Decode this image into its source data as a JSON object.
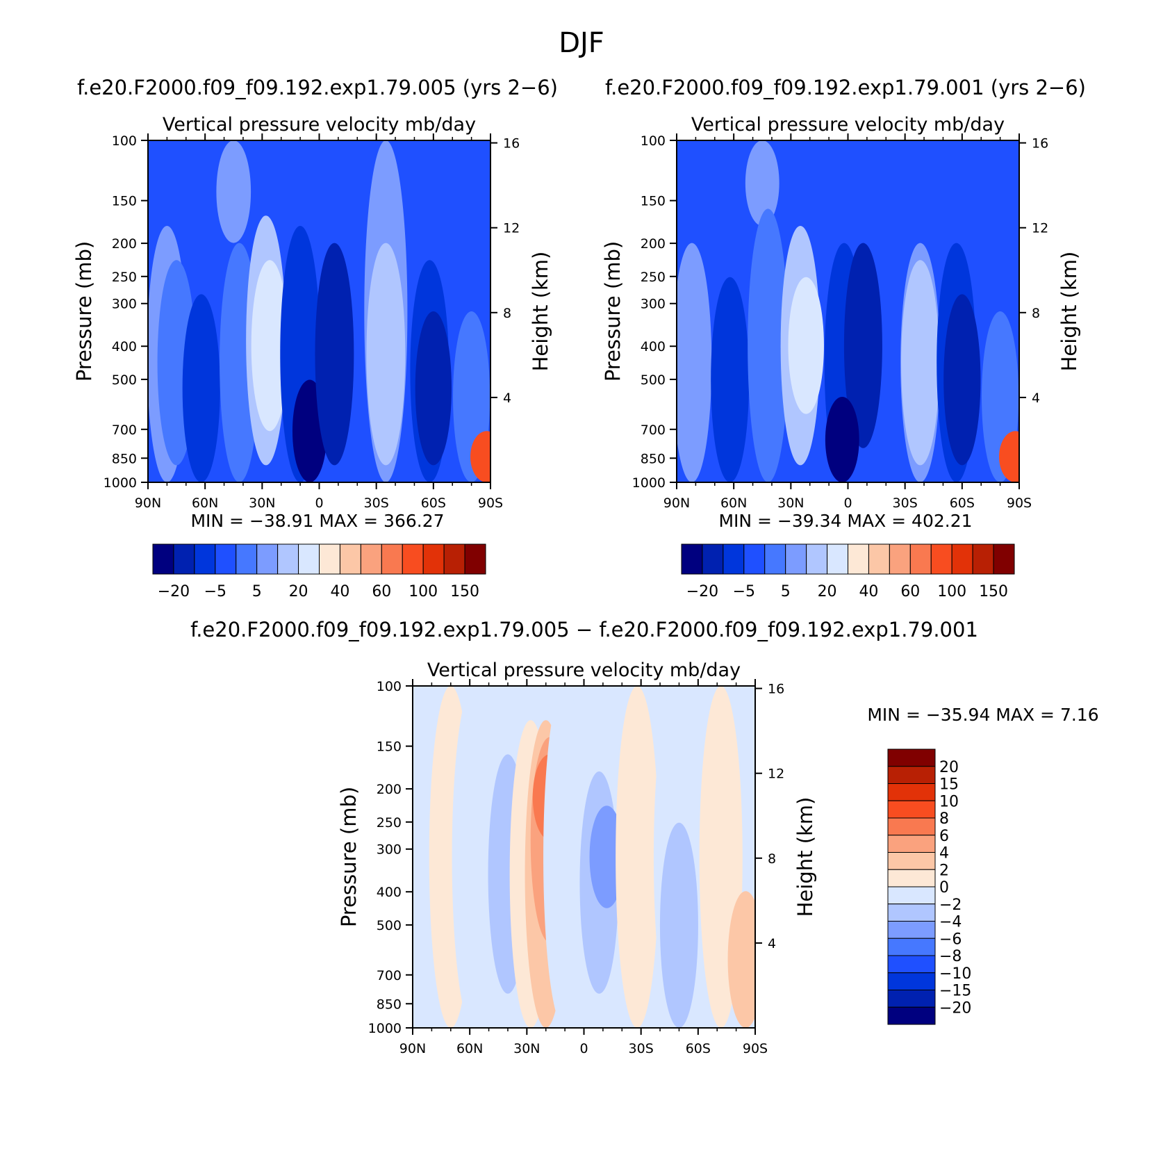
{
  "figure": {
    "title": "DJF"
  },
  "colors": {
    "main": [
      "#00007f",
      "#0021b0",
      "#0036dc",
      "#1f50ff",
      "#4678ff",
      "#7c9cff",
      "#b0c6ff",
      "#d9e7ff",
      "#fde8d6",
      "#fcc7a7",
      "#faa27e",
      "#f97950",
      "#f84d20",
      "#e23208",
      "#b82004",
      "#800000"
    ],
    "diff": [
      "#00007f",
      "#0021b0",
      "#0036dc",
      "#1f50ff",
      "#4678ff",
      "#7c9cff",
      "#b0c6ff",
      "#d9e7ff",
      "#fde8d6",
      "#fcc7a7",
      "#faa27e",
      "#f97950",
      "#f84d20",
      "#e23208",
      "#b82004",
      "#800000"
    ]
  },
  "chart_data": [
    {
      "id": "left",
      "type": "heatmap",
      "case_title": "f.e20.F2000.f09_f09.192.exp1.79.005 (yrs 2−6)",
      "title": "Vertical pressure velocity   mb/day",
      "ylabel": "Pressure (mb)",
      "y2label": "Height (km)",
      "x_ticks": [
        "90N",
        "60N",
        "30N",
        "0",
        "30S",
        "60S",
        "90S"
      ],
      "y_ticks": [
        "100",
        "150",
        "200",
        "250",
        "300",
        "400",
        "500",
        "700",
        "850",
        "1000"
      ],
      "y2_ticks": [
        "16",
        "12",
        "8",
        "4"
      ],
      "stats": "MIN = −38.91   MAX = 366.27",
      "colorbar_labels": [
        "−20",
        "−5",
        "5",
        "20",
        "40",
        "60",
        "100",
        "150"
      ],
      "fields": [
        {
          "lat": 90,
          "lo": 0,
          "hi": 1,
          "level": 3
        },
        {
          "lat": 80,
          "lo": 0.25,
          "hi": 1,
          "level": 5
        },
        {
          "lat": 75,
          "lo": 0.35,
          "hi": 0.95,
          "level": 4
        },
        {
          "lat": 62,
          "lo": 0.45,
          "hi": 1,
          "level": 2
        },
        {
          "lat": 45,
          "lo": 0,
          "hi": 0.3,
          "level": 5
        },
        {
          "lat": 42,
          "lo": 0.3,
          "hi": 1,
          "level": 4
        },
        {
          "lat": 28,
          "lo": 0.22,
          "hi": 0.95,
          "level": 6
        },
        {
          "lat": 26,
          "lo": 0.35,
          "hi": 0.85,
          "level": 7
        },
        {
          "lat": 10,
          "lo": 0.25,
          "hi": 1,
          "level": 2
        },
        {
          "lat": 5,
          "lo": 0.7,
          "hi": 1,
          "level": 0
        },
        {
          "lat": -8,
          "lo": 0.3,
          "hi": 0.95,
          "level": 1
        },
        {
          "lat": -35,
          "lo": 0,
          "hi": 1,
          "level": 5
        },
        {
          "lat": -35,
          "lo": 0.3,
          "hi": 0.95,
          "level": 6
        },
        {
          "lat": -58,
          "lo": 0.35,
          "hi": 1,
          "level": 2
        },
        {
          "lat": -60,
          "lo": 0.5,
          "hi": 0.95,
          "level": 1
        },
        {
          "lat": -80,
          "lo": 0.5,
          "hi": 1,
          "level": 4
        },
        {
          "lat": -88,
          "lo": 0.85,
          "hi": 1,
          "level": 12
        }
      ]
    },
    {
      "id": "right",
      "type": "heatmap",
      "case_title": "f.e20.F2000.f09_f09.192.exp1.79.001 (yrs 2−6)",
      "title": "Vertical pressure velocity   mb/day",
      "ylabel": "Pressure (mb)",
      "y2label": "Height (km)",
      "x_ticks": [
        "90N",
        "60N",
        "30N",
        "0",
        "30S",
        "60S",
        "90S"
      ],
      "y_ticks": [
        "100",
        "150",
        "200",
        "250",
        "300",
        "400",
        "500",
        "700",
        "850",
        "1000"
      ],
      "y2_ticks": [
        "16",
        "12",
        "8",
        "4"
      ],
      "stats": "MIN = −39.34   MAX = 402.21",
      "colorbar_labels": [
        "−20",
        "−5",
        "5",
        "20",
        "40",
        "60",
        "100",
        "150"
      ],
      "fields": [
        {
          "lat": 90,
          "lo": 0,
          "hi": 1,
          "level": 3
        },
        {
          "lat": 82,
          "lo": 0.3,
          "hi": 1,
          "level": 5
        },
        {
          "lat": 62,
          "lo": 0.4,
          "hi": 1,
          "level": 2
        },
        {
          "lat": 45,
          "lo": 0,
          "hi": 0.25,
          "level": 5
        },
        {
          "lat": 42,
          "lo": 0.2,
          "hi": 1,
          "level": 4
        },
        {
          "lat": 25,
          "lo": 0.25,
          "hi": 0.95,
          "level": 6
        },
        {
          "lat": 22,
          "lo": 0.4,
          "hi": 0.8,
          "level": 7
        },
        {
          "lat": 2,
          "lo": 0.3,
          "hi": 1,
          "level": 2
        },
        {
          "lat": -8,
          "lo": 0.3,
          "hi": 0.9,
          "level": 1
        },
        {
          "lat": 3,
          "lo": 0.75,
          "hi": 1,
          "level": 0
        },
        {
          "lat": -38,
          "lo": 0.3,
          "hi": 1,
          "level": 5
        },
        {
          "lat": -38,
          "lo": 0.35,
          "hi": 0.95,
          "level": 6
        },
        {
          "lat": -57,
          "lo": 0.3,
          "hi": 1,
          "level": 2
        },
        {
          "lat": -60,
          "lo": 0.45,
          "hi": 0.95,
          "level": 1
        },
        {
          "lat": -80,
          "lo": 0.5,
          "hi": 1,
          "level": 4
        },
        {
          "lat": -88,
          "lo": 0.85,
          "hi": 1,
          "level": 12
        }
      ]
    },
    {
      "id": "diff",
      "type": "heatmap",
      "case_title": "f.e20.F2000.f09_f09.192.exp1.79.005 − f.e20.F2000.f09_f09.192.exp1.79.001",
      "title": "Vertical pressure velocity   mb/day",
      "ylabel": "Pressure (mb)",
      "y2label": "Height (km)",
      "x_ticks": [
        "90N",
        "60N",
        "30N",
        "0",
        "30S",
        "60S",
        "90S"
      ],
      "y_ticks": [
        "100",
        "150",
        "200",
        "250",
        "300",
        "400",
        "500",
        "700",
        "850",
        "1000"
      ],
      "y2_ticks": [
        "16",
        "12",
        "8",
        "4"
      ],
      "stats": "MIN = −35.94   MAX =    7.16",
      "colorbar_labels": [
        "20",
        "15",
        "10",
        "8",
        "6",
        "4",
        "2",
        "0",
        "−2",
        "−4",
        "−6",
        "−8",
        "−10",
        "−15",
        "−20"
      ],
      "fields": [
        {
          "lat": 90,
          "lo": 0,
          "hi": 1,
          "level": 7
        },
        {
          "lat": 70,
          "lo": 0,
          "hi": 1,
          "level": 8
        },
        {
          "lat": 58,
          "lo": 0,
          "hi": 1,
          "level": 7
        },
        {
          "lat": 40,
          "lo": 0.2,
          "hi": 0.9,
          "level": 6
        },
        {
          "lat": 28,
          "lo": 0.1,
          "hi": 1,
          "level": 8
        },
        {
          "lat": 20,
          "lo": 0.1,
          "hi": 1,
          "level": 9
        },
        {
          "lat": 18,
          "lo": 0.15,
          "hi": 0.75,
          "level": 10
        },
        {
          "lat": 18,
          "lo": 0.2,
          "hi": 0.45,
          "level": 11
        },
        {
          "lat": 10,
          "lo": 0,
          "hi": 1,
          "level": 7
        },
        {
          "lat": -8,
          "lo": 0.25,
          "hi": 0.9,
          "level": 6
        },
        {
          "lat": -12,
          "lo": 0.35,
          "hi": 0.65,
          "level": 5
        },
        {
          "lat": -28,
          "lo": 0,
          "hi": 1,
          "level": 8
        },
        {
          "lat": -48,
          "lo": 0,
          "hi": 1,
          "level": 7
        },
        {
          "lat": -50,
          "lo": 0.4,
          "hi": 1,
          "level": 6
        },
        {
          "lat": -72,
          "lo": 0,
          "hi": 1,
          "level": 8
        },
        {
          "lat": -85,
          "lo": 0.6,
          "hi": 1,
          "level": 9
        }
      ]
    }
  ]
}
